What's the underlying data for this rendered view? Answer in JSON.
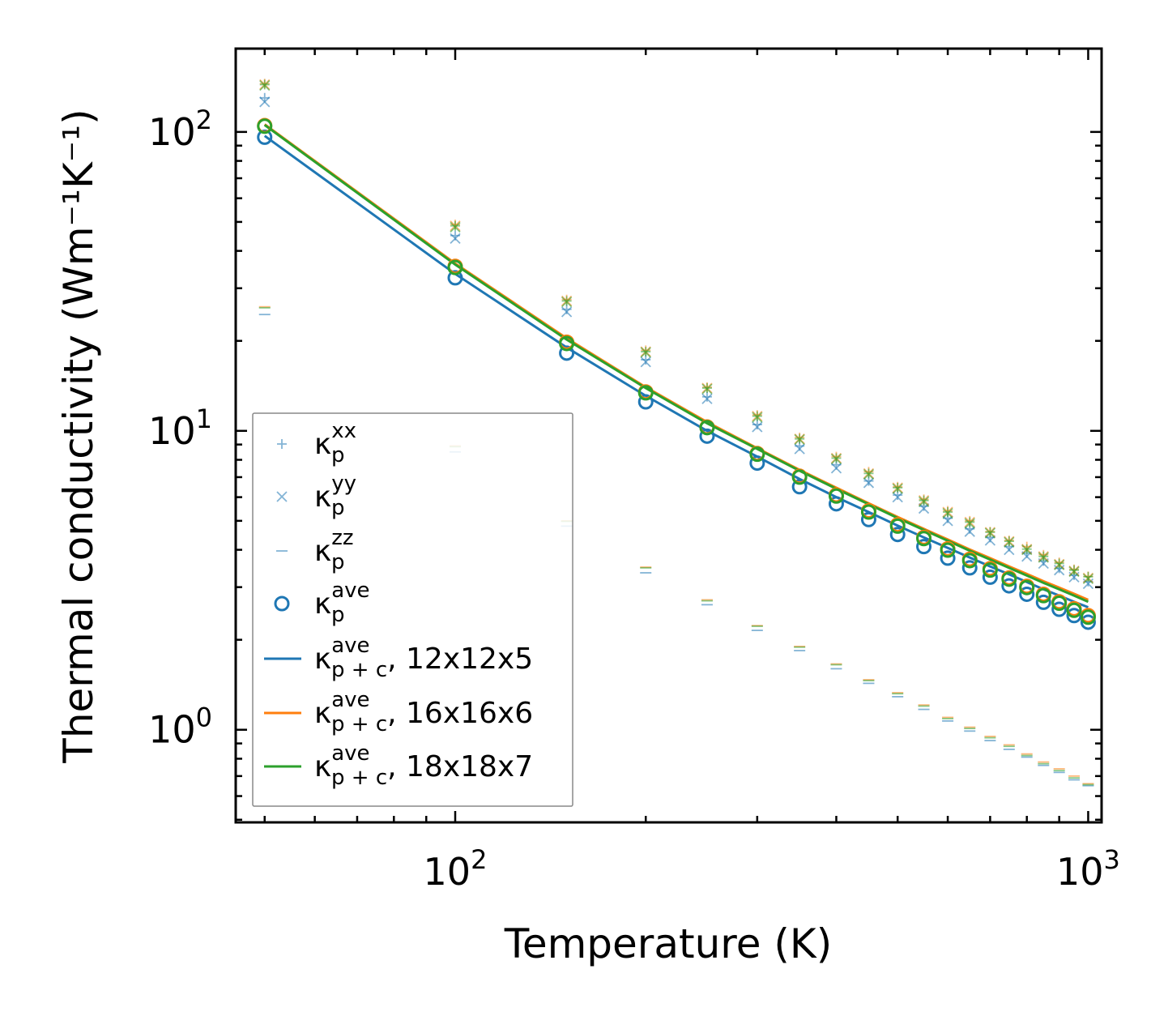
{
  "chart_data": {
    "type": "scatter",
    "xscale": "log",
    "yscale": "log",
    "xlim": [
      45,
      1050
    ],
    "ylim": [
      0.49,
      190
    ],
    "xlabel": "Temperature (K)",
    "ylabel": "Thermal conductivity (Wm⁻¹K⁻¹)",
    "x_ticks": [
      {
        "value": 100,
        "base": "10",
        "exp": "2"
      },
      {
        "value": 1000,
        "base": "10",
        "exp": "3"
      }
    ],
    "y_ticks": [
      {
        "value": 1,
        "base": "10",
        "exp": "0"
      },
      {
        "value": 10,
        "base": "10",
        "exp": "1"
      },
      {
        "value": 100,
        "base": "10",
        "exp": "2"
      }
    ],
    "x": [
      50,
      100,
      150,
      200,
      250,
      300,
      350,
      400,
      450,
      500,
      550,
      600,
      650,
      700,
      750,
      800,
      850,
      900,
      950,
      1000
    ],
    "meshes": [
      {
        "label": "12x12x5",
        "color": "#1f77b4",
        "kxx": [
          130,
          45,
          25.5,
          17.3,
          13.0,
          10.5,
          8.9,
          7.7,
          6.8,
          6.1,
          5.6,
          5.1,
          4.7,
          4.4,
          4.1,
          3.9,
          3.67,
          3.47,
          3.29,
          3.13
        ],
        "kyy": [
          126,
          44,
          25.0,
          17.0,
          12.8,
          10.3,
          8.7,
          7.5,
          6.7,
          6.0,
          5.5,
          5.0,
          4.6,
          4.3,
          4.0,
          3.8,
          3.6,
          3.42,
          3.24,
          3.08
        ],
        "kzz": [
          24.5,
          8.5,
          4.8,
          3.35,
          2.62,
          2.15,
          1.84,
          1.6,
          1.43,
          1.29,
          1.17,
          1.07,
          0.99,
          0.92,
          0.86,
          0.81,
          0.76,
          0.72,
          0.68,
          0.65
        ],
        "kave": [
          96,
          32.5,
          18.2,
          12.5,
          9.6,
          7.8,
          6.5,
          5.7,
          5.05,
          4.5,
          4.1,
          3.75,
          3.48,
          3.24,
          3.03,
          2.84,
          2.67,
          2.53,
          2.41,
          2.29
        ],
        "kpc": [
          97,
          33.5,
          19.0,
          13.1,
          10.0,
          8.2,
          6.9,
          6.0,
          5.35,
          4.82,
          4.4,
          4.06,
          3.77,
          3.52,
          3.31,
          3.12,
          2.95,
          2.81,
          2.68,
          2.57
        ]
      },
      {
        "label": "16x16x6",
        "color": "#ff7f0e",
        "kxx": [
          145,
          49,
          27.5,
          18.6,
          14.0,
          11.3,
          9.5,
          8.2,
          7.3,
          6.5,
          5.9,
          5.4,
          5.0,
          4.6,
          4.3,
          4.1,
          3.85,
          3.63,
          3.44,
          3.26
        ],
        "kyy": [
          144,
          48.5,
          27.2,
          18.4,
          13.9,
          11.2,
          9.4,
          8.1,
          7.2,
          6.45,
          5.85,
          5.35,
          4.95,
          4.58,
          4.27,
          4.02,
          3.8,
          3.58,
          3.4,
          3.22
        ],
        "kzz": [
          26,
          8.9,
          5.0,
          3.5,
          2.72,
          2.23,
          1.9,
          1.66,
          1.47,
          1.33,
          1.21,
          1.1,
          1.02,
          0.95,
          0.89,
          0.83,
          0.78,
          0.74,
          0.7,
          0.66
        ],
        "kave": [
          105,
          35.5,
          19.8,
          13.5,
          10.3,
          8.4,
          7.05,
          6.1,
          5.4,
          4.85,
          4.4,
          4.03,
          3.72,
          3.46,
          3.22,
          3.02,
          2.84,
          2.68,
          2.54,
          2.41
        ],
        "kpc": [
          106,
          36.3,
          20.4,
          14.0,
          10.7,
          8.75,
          7.4,
          6.45,
          5.72,
          5.15,
          4.7,
          4.33,
          4.01,
          3.75,
          3.52,
          3.32,
          3.14,
          2.99,
          2.85,
          2.72
        ]
      },
      {
        "label": "18x18x7",
        "color": "#2ca02c",
        "kxx": [
          144,
          48.5,
          27.2,
          18.4,
          13.9,
          11.2,
          9.4,
          8.1,
          7.2,
          6.45,
          5.85,
          5.35,
          4.95,
          4.58,
          4.27,
          4.02,
          3.8,
          3.6,
          3.42,
          3.25
        ],
        "kyy": [
          143,
          48,
          27.0,
          18.3,
          13.8,
          11.1,
          9.35,
          8.05,
          7.15,
          6.4,
          5.8,
          5.3,
          4.9,
          4.55,
          4.24,
          4.0,
          3.77,
          3.56,
          3.38,
          3.2
        ],
        "kzz": [
          25.8,
          8.85,
          4.98,
          3.48,
          2.7,
          2.22,
          1.89,
          1.65,
          1.46,
          1.32,
          1.2,
          1.09,
          1.01,
          0.94,
          0.88,
          0.82,
          0.77,
          0.73,
          0.69,
          0.655
        ],
        "kave": [
          104.5,
          35.2,
          19.6,
          13.4,
          10.25,
          8.35,
          7.0,
          6.05,
          5.35,
          4.8,
          4.36,
          3.99,
          3.68,
          3.42,
          3.19,
          2.99,
          2.81,
          2.65,
          2.51,
          2.38
        ],
        "kpc": [
          105.5,
          36.0,
          20.2,
          13.9,
          10.6,
          8.7,
          7.35,
          6.4,
          5.68,
          5.11,
          4.66,
          4.29,
          3.97,
          3.71,
          3.48,
          3.28,
          3.1,
          2.95,
          2.81,
          2.68
        ]
      }
    ],
    "legend": {
      "placement": "lower-left",
      "entries": [
        {
          "kind": "plus",
          "base": "κ",
          "sup": "xx",
          "sub": "p",
          "suffix": "",
          "color": "#1f77b4"
        },
        {
          "kind": "cross",
          "base": "κ",
          "sup": "yy",
          "sub": "p",
          "suffix": "",
          "color": "#1f77b4"
        },
        {
          "kind": "dash",
          "base": "κ",
          "sup": "zz",
          "sub": "p",
          "suffix": "",
          "color": "#1f77b4"
        },
        {
          "kind": "circle",
          "base": "κ",
          "sup": "ave",
          "sub": "p",
          "suffix": "",
          "color": "#1f77b4"
        },
        {
          "kind": "line",
          "base": "κ",
          "sup": "ave",
          "sub": "p + c",
          "suffix": ", 12x12x5",
          "color": "#1f77b4"
        },
        {
          "kind": "line",
          "base": "κ",
          "sup": "ave",
          "sub": "p + c",
          "suffix": ", 16x16x6",
          "color": "#ff7f0e"
        },
        {
          "kind": "line",
          "base": "κ",
          "sup": "ave",
          "sub": "p + c",
          "suffix": ", 18x18x7",
          "color": "#2ca02c"
        }
      ]
    }
  }
}
